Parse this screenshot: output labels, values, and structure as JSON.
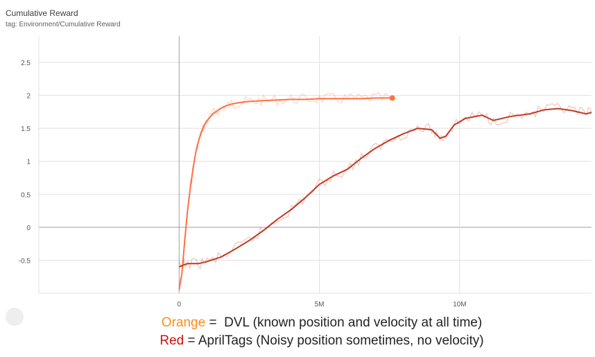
{
  "card": {
    "title": "Cumulative Reward",
    "tag": "tag: Environment/Cumulative Reward"
  },
  "legend": {
    "orange_word": "Orange",
    "orange_text": " =  DVL (known position and velocity at all time)",
    "red_word": "Red",
    "red_text": " = AprilTags (Noisy position sometimes, no velocity)",
    "orange_color": "#ff8c1a",
    "red_color": "#cc1010"
  },
  "colors": {
    "orange_series": "#ff7043",
    "red_series": "#c23b22",
    "grid": "#e0e0e0",
    "zero_axis": "#9e9e9e"
  },
  "chart_data": {
    "type": "line",
    "title": "Cumulative Reward",
    "xlabel": "",
    "ylabel": "",
    "xlim": [
      -5000000,
      14700000
    ],
    "ylim": [
      -1.0,
      2.9
    ],
    "x_ticks": [
      0,
      5000000,
      10000000
    ],
    "x_tick_labels": [
      "0",
      "5M",
      "10M"
    ],
    "y_ticks": [
      -0.5,
      0,
      0.5,
      1,
      1.5,
      2,
      2.5
    ],
    "y_tick_labels": [
      "-0.5",
      "0",
      "0.5",
      "1",
      "1.5",
      "2",
      "2.5"
    ],
    "grid": true,
    "series": [
      {
        "name": "Orange",
        "color": "#ff7043",
        "x": [
          0,
          100000,
          200000,
          300000,
          400000,
          500000,
          600000,
          700000,
          800000,
          900000,
          1000000,
          1200000,
          1400000,
          1600000,
          1800000,
          2000000,
          2300000,
          2600000,
          3000000,
          3500000,
          4000000,
          4500000,
          5000000,
          5500000,
          6000000,
          6500000,
          7000000,
          7600000
        ],
        "y": [
          -0.95,
          -0.7,
          -0.2,
          0.25,
          0.6,
          0.9,
          1.15,
          1.32,
          1.45,
          1.55,
          1.62,
          1.72,
          1.78,
          1.83,
          1.86,
          1.88,
          1.9,
          1.91,
          1.92,
          1.93,
          1.94,
          1.94,
          1.95,
          1.95,
          1.95,
          1.95,
          1.96,
          1.96
        ]
      },
      {
        "name": "Red",
        "color": "#c23b22",
        "x": [
          0,
          300000,
          700000,
          1000000,
          1500000,
          2000000,
          2500000,
          3000000,
          3500000,
          4000000,
          4500000,
          5000000,
          5500000,
          6000000,
          6500000,
          7000000,
          7500000,
          8000000,
          8500000,
          9000000,
          9300000,
          9500000,
          9800000,
          10200000,
          10800000,
          11200000,
          11800000,
          12500000,
          13000000,
          13500000,
          14000000,
          14500000,
          14700000
        ],
        "y": [
          -0.6,
          -0.55,
          -0.55,
          -0.52,
          -0.45,
          -0.33,
          -0.2,
          -0.05,
          0.12,
          0.27,
          0.45,
          0.65,
          0.78,
          0.88,
          1.05,
          1.2,
          1.32,
          1.42,
          1.5,
          1.48,
          1.35,
          1.38,
          1.55,
          1.65,
          1.7,
          1.62,
          1.68,
          1.72,
          1.78,
          1.8,
          1.77,
          1.72,
          1.74
        ]
      }
    ]
  }
}
